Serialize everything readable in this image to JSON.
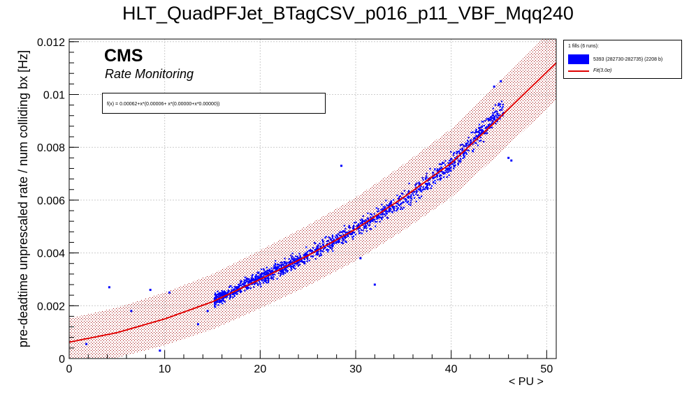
{
  "chart_data": {
    "type": "scatter",
    "title": "HLT_QuadPFJet_BTagCSV_p016_p11_VBF_Mqq240",
    "xlabel": "< PU >",
    "ylabel": "pre-deadtime unprescaled rate / num colliding bx [Hz]",
    "xlim": [
      0,
      51
    ],
    "ylim": [
      0,
      0.0121
    ],
    "xticks": [
      "0",
      "10",
      "20",
      "30",
      "40",
      "50"
    ],
    "yticks": [
      "0",
      "0.002",
      "0.004",
      "0.006",
      "0.008",
      "0.01",
      "0.012"
    ],
    "grid": true,
    "legend_position": "top-right, outside plot",
    "colors": {
      "points": "#0000ff",
      "fit": "#e00000",
      "band": "#a00000"
    },
    "annotations": {
      "experiment": "CMS",
      "subtitle": "Rate Monitoring",
      "fit_formula": "f(x) = 0.00062+x*(0.00006+ x*(0.00000+x*0.00000))"
    },
    "legend": {
      "header": "1 fills (6 runs):",
      "entries": [
        {
          "label": "5393 (282730-282735) (2208 b)",
          "kind": "box"
        },
        {
          "label": "Fit(3.0σ)",
          "kind": "line"
        }
      ]
    },
    "fit": {
      "curve": [
        [
          0,
          0.00062
        ],
        [
          5,
          0.00098
        ],
        [
          10,
          0.0015
        ],
        [
          15,
          0.00215
        ],
        [
          20,
          0.003
        ],
        [
          25,
          0.0039
        ],
        [
          30,
          0.0049
        ],
        [
          35,
          0.0061
        ],
        [
          40,
          0.0074
        ],
        [
          45,
          0.0091
        ],
        [
          51,
          0.0112
        ]
      ],
      "band_halfwidth": 0.0009
    },
    "series": [
      {
        "name": "5393 (282730-282735) (2208 b)",
        "cloud": [
          {
            "x_range": [
              15.2,
              45.5
            ],
            "segments": [
              [
                15.2,
                0.0022
              ],
              [
                20,
                0.00305
              ],
              [
                25,
                0.0039
              ],
              [
                30,
                0.0049
              ],
              [
                35,
                0.006
              ],
              [
                40,
                0.0074
              ],
              [
                45.5,
                0.0095
              ]
            ],
            "spread": 0.00032,
            "count": 1500
          }
        ],
        "points": [
          [
            1.8,
            0.00055
          ],
          [
            4.2,
            0.0027
          ],
          [
            6.5,
            0.0018
          ],
          [
            8.5,
            0.0026
          ],
          [
            9.5,
            0.0003
          ],
          [
            10.5,
            0.0025
          ],
          [
            13.5,
            0.0013
          ],
          [
            14.5,
            0.0018
          ],
          [
            28.5,
            0.0073
          ],
          [
            30.5,
            0.0038
          ],
          [
            32,
            0.0028
          ],
          [
            46,
            0.0076
          ],
          [
            46.3,
            0.0075
          ],
          [
            44.5,
            0.0103
          ],
          [
            45.2,
            0.0105
          ]
        ]
      }
    ]
  }
}
